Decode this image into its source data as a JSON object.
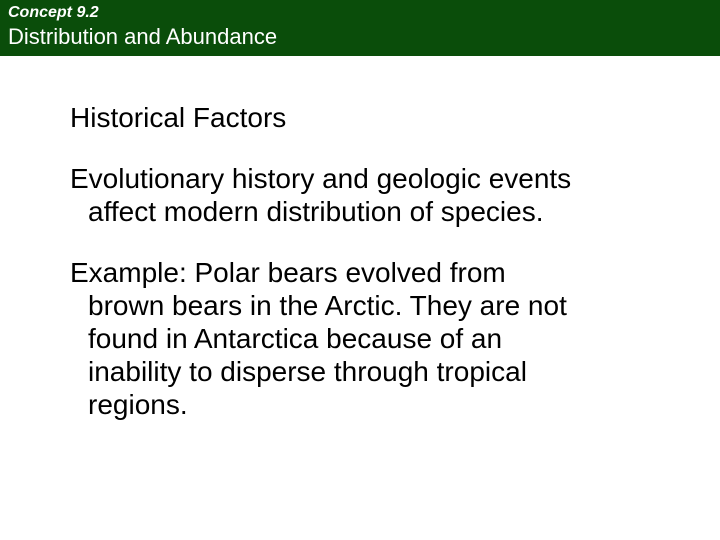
{
  "header": {
    "concept_label": "Concept 9.2",
    "title": "Distribution and Abundance",
    "background_color": "#0a4d0a",
    "label_color": "#ffffff"
  },
  "content": {
    "heading": "Historical Factors",
    "paragraph1_line1": "Evolutionary history and geologic events",
    "paragraph1_line2": "affect modern distribution of species.",
    "paragraph2_line1": "Example: Polar bears evolved from",
    "paragraph2_line2": "brown bears in the Arctic. They are not",
    "paragraph2_line3": "found in Antarctica because of an",
    "paragraph2_line4": "inability to disperse through tropical",
    "paragraph2_line5": "regions."
  },
  "styling": {
    "body_background": "#ffffff",
    "heading_fontsize": 28,
    "paragraph_fontsize": 28,
    "header_title_fontsize": 22,
    "concept_label_fontsize": 16
  }
}
